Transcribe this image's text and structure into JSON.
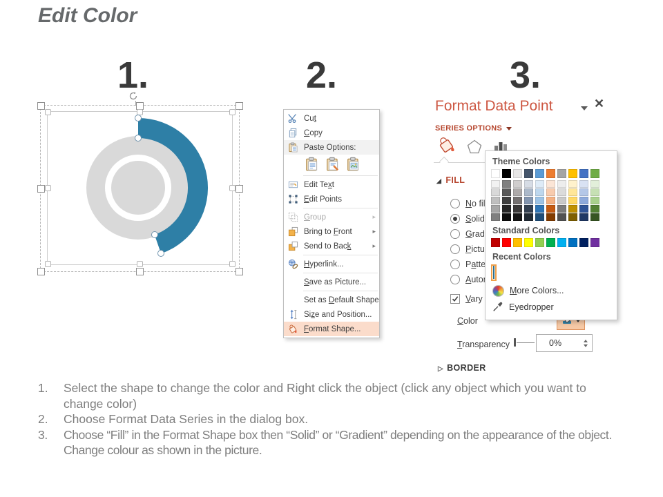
{
  "title": "Edit Color",
  "steps": {
    "one": "1.",
    "two": "2.",
    "three": "3."
  },
  "colors": {
    "accent_teal": "#2E7FA6",
    "donut_gray": "#D9D9D9",
    "panel_red": "#CD5742",
    "series_red": "#B6462E",
    "menu_highlight": "#FBDCCB"
  },
  "context_menu": {
    "items": [
      {
        "type": "item",
        "icon": "scissors-icon",
        "label": "Cut",
        "key": "t"
      },
      {
        "type": "item",
        "icon": "copy-icon",
        "label": "Copy",
        "key": "C"
      },
      {
        "type": "label",
        "icon": "paste-icon",
        "label": "Paste Options:"
      },
      {
        "type": "paste-row",
        "icons": [
          "paste-source-icon",
          "paste-embed-icon",
          "paste-picture-icon"
        ]
      },
      {
        "type": "sep"
      },
      {
        "type": "item",
        "icon": "edit-text-icon",
        "label": "Edit Text",
        "key": "x"
      },
      {
        "type": "item",
        "icon": "edit-points-icon",
        "label": "Edit Points",
        "key": "E"
      },
      {
        "type": "sep"
      },
      {
        "type": "item",
        "icon": "group-icon",
        "label": "Group",
        "key": "G",
        "disabled": true,
        "submenu": true
      },
      {
        "type": "item",
        "icon": "bring-front-icon",
        "label": "Bring to Front",
        "key": "F",
        "submenu": true
      },
      {
        "type": "item",
        "icon": "send-back-icon",
        "label": "Send to Back",
        "key": "k",
        "submenu": true
      },
      {
        "type": "sep"
      },
      {
        "type": "item",
        "icon": "hyperlink-icon",
        "label": "Hyperlink...",
        "key": "H"
      },
      {
        "type": "sep"
      },
      {
        "type": "item",
        "label": "Save as Picture...",
        "key": "S"
      },
      {
        "type": "sep"
      },
      {
        "type": "item",
        "label": "Set as Default Shape",
        "key": "D"
      },
      {
        "type": "item",
        "icon": "size-position-icon",
        "label": "Size and Position...",
        "key": "z"
      },
      {
        "type": "item",
        "icon": "format-shape-icon",
        "label": "Format Shape...",
        "key": "F",
        "highlight": true
      }
    ]
  },
  "format_panel": {
    "title": "Format Data Point",
    "section_label": "SERIES OPTIONS",
    "fill_header": "FILL",
    "border_header": "BORDER",
    "fill_options": [
      {
        "label": "No fill",
        "key": "N",
        "selected": false
      },
      {
        "label": "Solid fill",
        "key": "S",
        "selected": true
      },
      {
        "label": "Gradient fill",
        "key": "G",
        "selected": false
      },
      {
        "label": "Picture or texture fill",
        "key": "P",
        "selected": false
      },
      {
        "label": "Pattern fill",
        "key": "a",
        "selected": false
      },
      {
        "label": "Automatic",
        "key": "A",
        "selected": false
      }
    ],
    "vary_checkbox": {
      "label": "Vary colors by point",
      "key": "V",
      "checked": true
    },
    "color_label": "Color",
    "color_key": "C",
    "transparency_label": "Transparency",
    "transparency_key": "T",
    "transparency_value": "0%"
  },
  "color_picker": {
    "theme_label": "Theme Colors",
    "standard_label": "Standard Colors",
    "recent_label": "Recent Colors",
    "more_colors_label": "More Colors...",
    "more_colors_key": "M",
    "eyedropper_label": "Eyedropper",
    "theme_colors": [
      "#FFFFFF",
      "#000000",
      "#E7E6E6",
      "#44546A",
      "#5B9BD5",
      "#ED7D31",
      "#A5A5A5",
      "#FFC000",
      "#4472C4",
      "#70AD47"
    ],
    "theme_variants": [
      [
        "#F2F2F2",
        "#D9D9D9",
        "#BFBFBF",
        "#A6A6A6",
        "#808080"
      ],
      [
        "#808080",
        "#595959",
        "#404040",
        "#262626",
        "#0D0D0D"
      ],
      [
        "#D0CECE",
        "#AEAAAA",
        "#757171",
        "#3A3838",
        "#161616"
      ],
      [
        "#D6DCE5",
        "#ACB9CA",
        "#8496B0",
        "#333F50",
        "#222B35"
      ],
      [
        "#DEEBF7",
        "#BDD7EE",
        "#9DC3E6",
        "#2E75B6",
        "#1F4E79"
      ],
      [
        "#FBE5D6",
        "#F8CBAD",
        "#F4B183",
        "#C55A11",
        "#833C00"
      ],
      [
        "#EDEDED",
        "#DBDBDB",
        "#C9C9C9",
        "#7B7B7B",
        "#525252"
      ],
      [
        "#FFF2CC",
        "#FFE699",
        "#FFD966",
        "#BF9000",
        "#7F6000"
      ],
      [
        "#D9E2F3",
        "#B4C7E7",
        "#8EAADB",
        "#2F5496",
        "#1F3864"
      ],
      [
        "#E2EFDA",
        "#C6E0B4",
        "#A9D18E",
        "#538135",
        "#375623"
      ]
    ],
    "standard_colors": [
      "#C00000",
      "#FF0000",
      "#FFC000",
      "#FFFF00",
      "#92D050",
      "#00B050",
      "#00B0F0",
      "#0070C0",
      "#002060",
      "#7030A0"
    ],
    "recent_colors": [
      "#2E7FA6"
    ]
  },
  "instructions": [
    {
      "num": "1.",
      "text": "Select the shape to change the color and Right click the object (click any object which you want to change color)"
    },
    {
      "num": "2.",
      "text": "Choose Format Data Series in the dialog box."
    },
    {
      "num": "3.",
      "text": "Choose “Fill” in the Format Shape box then “Solid” or “Gradient” depending on the appearance of the object. Change colour as shown in the picture."
    }
  ]
}
